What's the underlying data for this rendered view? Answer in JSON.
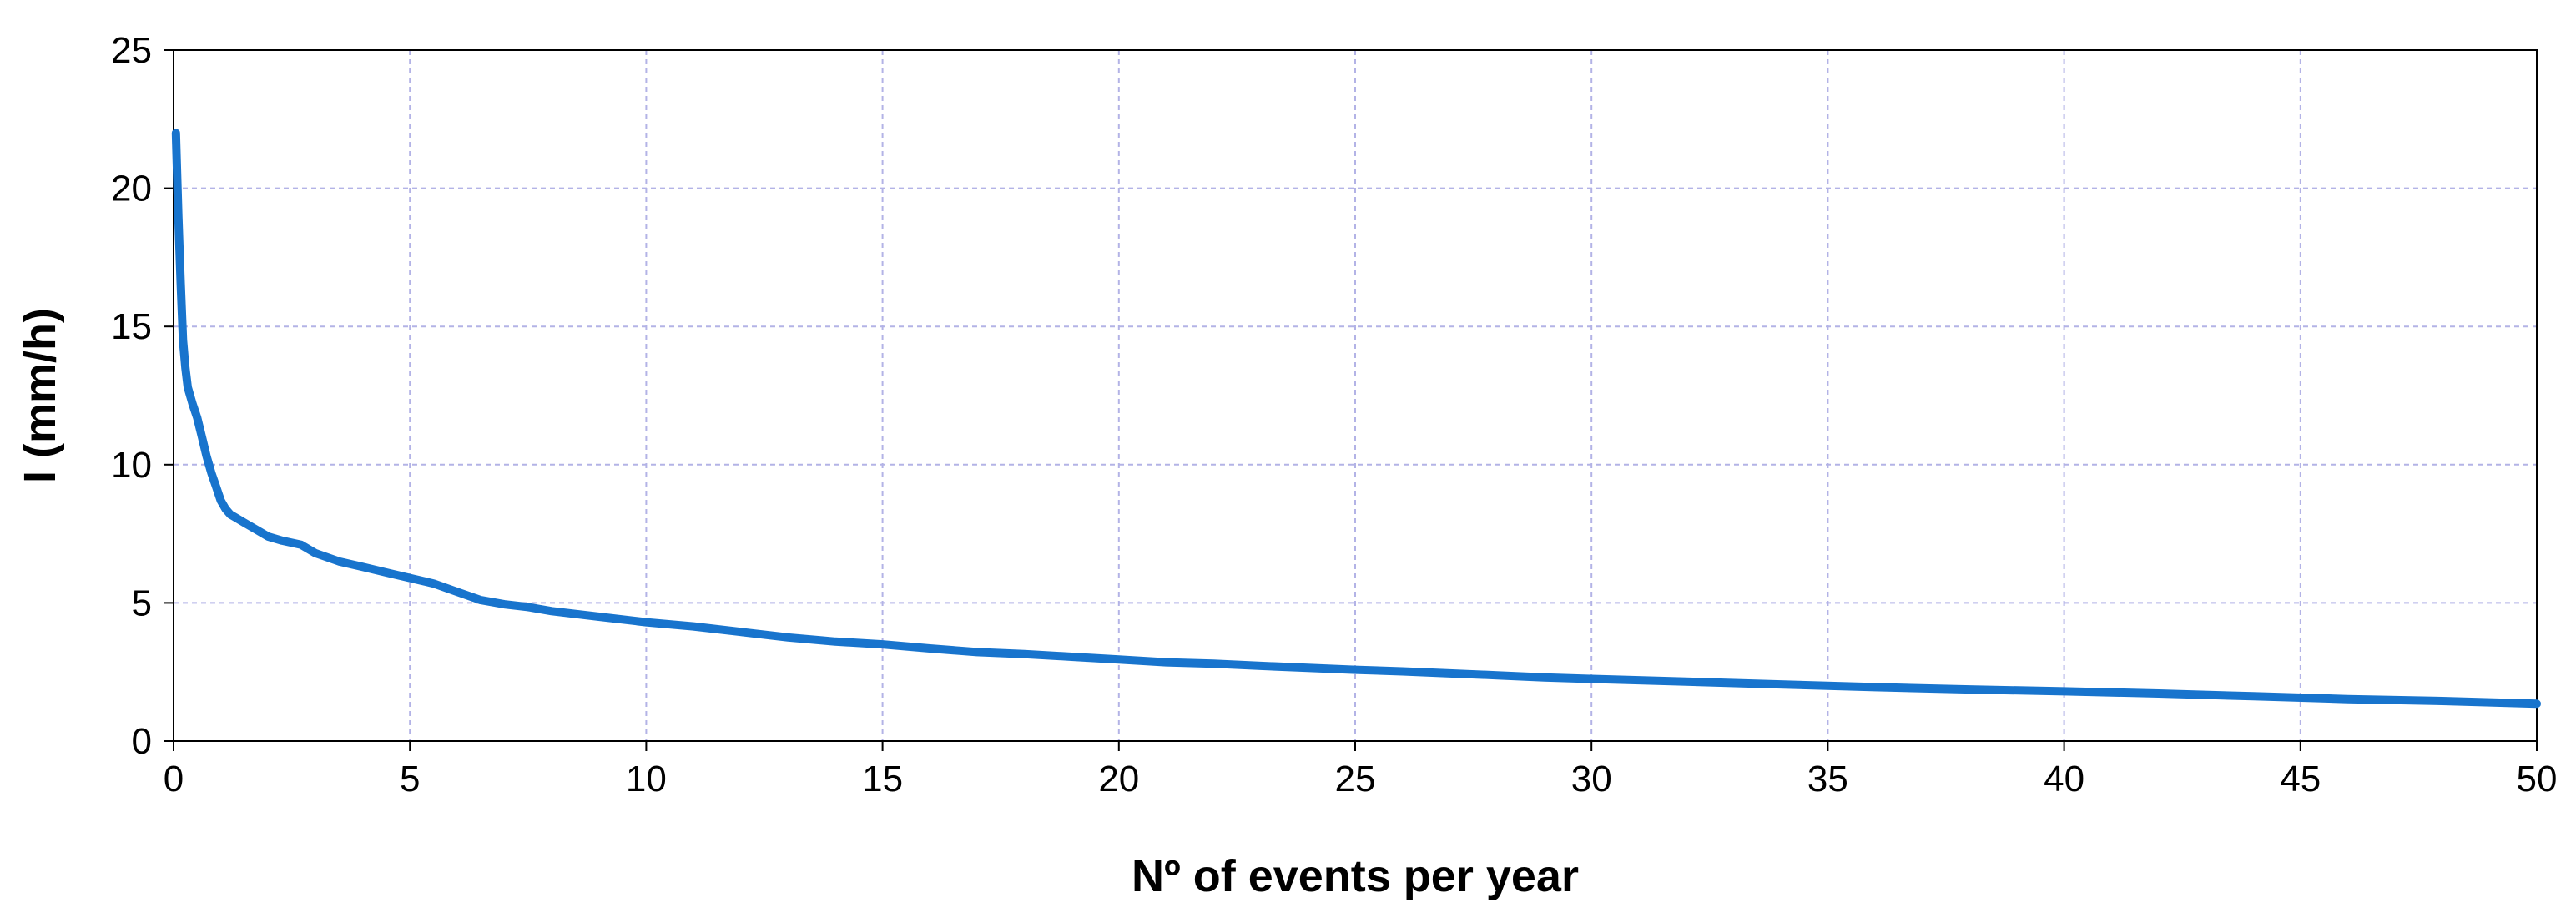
{
  "chart_data": {
    "type": "line",
    "title": "",
    "xlabel": "Nº of events per year",
    "ylabel": "I (mm/h)",
    "xlim": [
      0,
      50
    ],
    "ylim": [
      0,
      25
    ],
    "x_ticks": [
      "0",
      "5",
      "10",
      "15",
      "20",
      "25",
      "30",
      "35",
      "40",
      "45",
      "50"
    ],
    "y_ticks": [
      "0",
      "5",
      "10",
      "15",
      "20",
      "25"
    ],
    "grid": true,
    "legend": "none",
    "colors": {
      "line": "#1874CD",
      "grid": "#B3B3E6",
      "axis": "#000000"
    },
    "series": [
      {
        "x": [
          0.05,
          0.1,
          0.15,
          0.2,
          0.25,
          0.3,
          0.4,
          0.5,
          0.6,
          0.7,
          0.8,
          0.9,
          1.0,
          1.1,
          1.2,
          1.3,
          1.5,
          1.8,
          2.0,
          2.3,
          2.7,
          3.0,
          3.5,
          4.0,
          4.5,
          5.0,
          5.5,
          6.0,
          6.5,
          7.0,
          7.5,
          8.0,
          9.0,
          10.0,
          11.0,
          12.0,
          13.0,
          14.0,
          15.0,
          16.0,
          17.0,
          18.0,
          19.0,
          20.0,
          21.0,
          22.0,
          23.0,
          24.0,
          25.0,
          26.0,
          27.0,
          28.0,
          29.0,
          30.0,
          32.0,
          34.0,
          36.0,
          38.0,
          40.0,
          42.0,
          44.0,
          46.0,
          48.0,
          50.0
        ],
        "y": [
          22.0,
          19.0,
          16.6,
          14.5,
          13.5,
          12.8,
          12.2,
          11.7,
          11.0,
          10.3,
          9.7,
          9.2,
          8.7,
          8.4,
          8.2,
          8.1,
          7.9,
          7.6,
          7.4,
          7.25,
          7.1,
          6.8,
          6.5,
          6.3,
          6.1,
          5.9,
          5.7,
          5.4,
          5.1,
          4.95,
          4.85,
          4.7,
          4.5,
          4.3,
          4.15,
          3.95,
          3.75,
          3.6,
          3.5,
          3.35,
          3.22,
          3.15,
          3.05,
          2.95,
          2.85,
          2.8,
          2.72,
          2.65,
          2.58,
          2.52,
          2.45,
          2.38,
          2.3,
          2.25,
          2.15,
          2.05,
          1.95,
          1.87,
          1.8,
          1.72,
          1.62,
          1.52,
          1.45,
          1.35
        ]
      }
    ]
  }
}
